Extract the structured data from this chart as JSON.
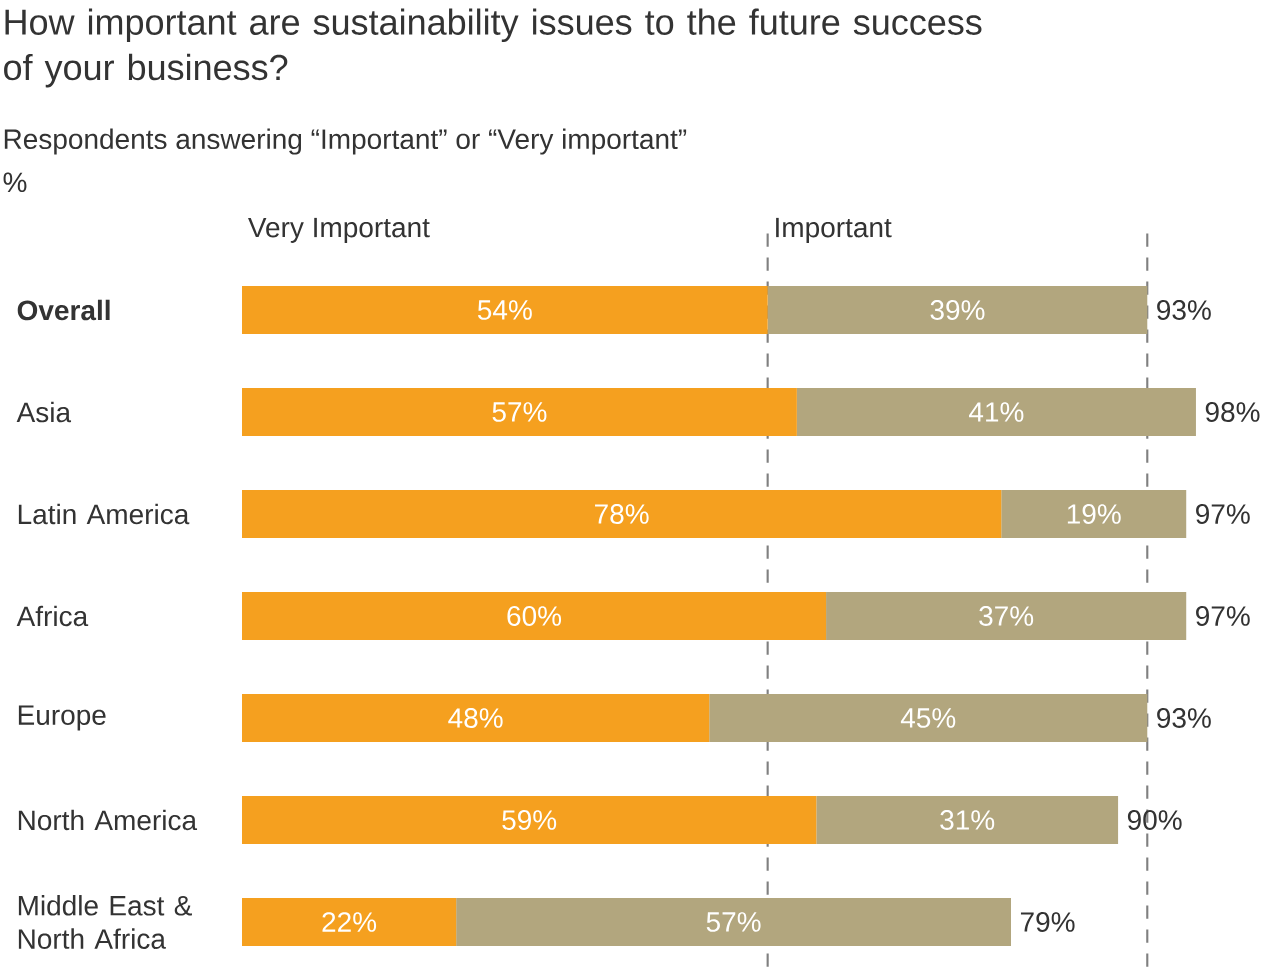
{
  "chart_data": {
    "type": "bar",
    "orientation": "horizontal",
    "stacked": true,
    "title": "How important are sustainability issues to the future success of your business?",
    "subtitle": "Respondents answering “Important” or “Very important”",
    "annotations": [
      "%"
    ],
    "categories": [
      "**Overall**",
      "Asia",
      "Latin America",
      "Africa",
      "Europe",
      "North America",
      "Middle East & North Africa"
    ],
    "series": [
      {
        "name": "Very Important",
        "color": "#f5a01f",
        "values": [
          54,
          57,
          78,
          60,
          48,
          59,
          22
        ],
        "value_labels": [
          "54%",
          "57%",
          "78%",
          "60%",
          "48%",
          "59%",
          "22%"
        ]
      },
      {
        "name": "Important",
        "color": "#b2a67e",
        "values": [
          39,
          41,
          19,
          37,
          45,
          31,
          57
        ],
        "value_labels": [
          "39%",
          "41%",
          "19%",
          "37%",
          "45%",
          "31%",
          "57%"
        ]
      }
    ],
    "totals": [
      "93%",
      "98%",
      "97%",
      "97%",
      "93%",
      "90%",
      "79%"
    ],
    "tick_labels": false,
    "ref_lines": [
      {
        "axis": "x",
        "value": 54,
        "label": null,
        "color": "#808080",
        "line_style": "dashed"
      },
      {
        "axis": "x",
        "value": 93,
        "label": null,
        "color": "#808080",
        "line_style": "dashed"
      }
    ]
  }
}
